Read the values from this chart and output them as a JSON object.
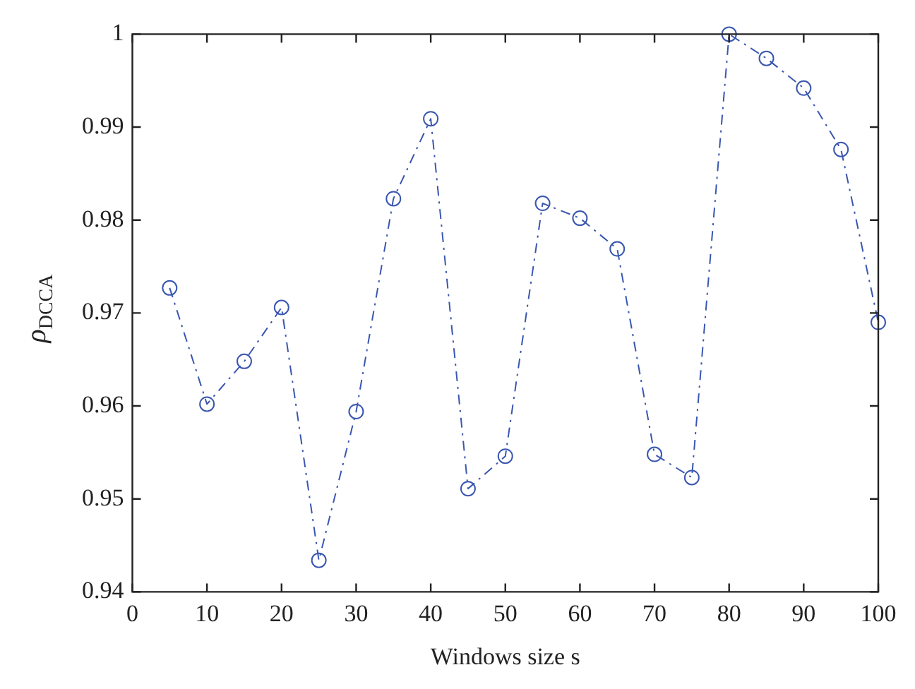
{
  "chart_data": {
    "type": "line",
    "xlabel": "Windows size s",
    "ylabel": "ρ$_{DCCA}$",
    "x": [
      5,
      10,
      15,
      20,
      25,
      30,
      35,
      40,
      45,
      50,
      55,
      60,
      65,
      70,
      75,
      80,
      85,
      90,
      95,
      100
    ],
    "series": [
      {
        "color": "#3a56b0",
        "values": [
          0.9727,
          0.9602,
          0.9648,
          0.9706,
          0.9434,
          0.9594,
          0.9823,
          0.9909,
          0.9511,
          0.9546,
          0.9818,
          0.9802,
          0.9769,
          0.9548,
          0.9523,
          1.0,
          0.9974,
          0.9942,
          0.9876,
          0.969
        ]
      }
    ],
    "xlim": [
      0,
      100
    ],
    "xticks": [
      0,
      10,
      20,
      30,
      40,
      50,
      60,
      70,
      80,
      90,
      100
    ],
    "ylim": [
      0.94,
      1
    ],
    "yticks": [
      0.94,
      0.95,
      0.96,
      0.97,
      0.98,
      0.99,
      1
    ],
    "grid": false,
    "legend": false,
    "marker": "circle",
    "line_style": "dashed"
  }
}
